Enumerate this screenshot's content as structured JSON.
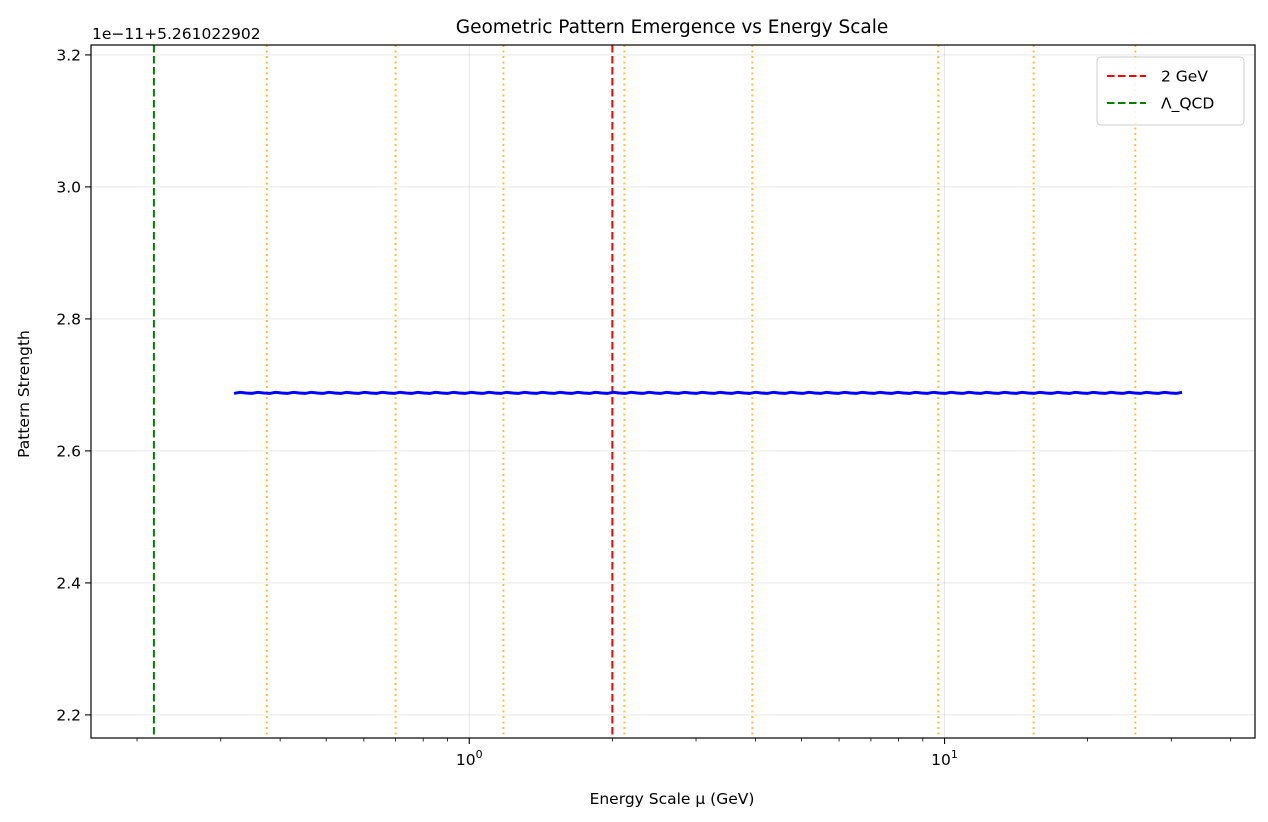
{
  "chart_data": {
    "type": "line",
    "title": "Geometric Pattern Emergence vs Energy Scale",
    "xlabel": "Energy Scale μ (GeV)",
    "ylabel": "Pattern Strength",
    "xscale": "log",
    "xlim": [
      0.16,
      45
    ],
    "ylim": [
      2.165,
      3.215
    ],
    "y_offset_text": "1e−11+5.261022902",
    "grid": true,
    "x_major_ticks": [
      {
        "value": 1,
        "base": "10",
        "exp": "0"
      },
      {
        "value": 10,
        "base": "10",
        "exp": "1"
      }
    ],
    "x_minor_ticks": [
      0.2,
      0.3,
      0.4,
      0.5,
      0.6,
      0.7,
      0.8,
      0.9,
      2,
      3,
      4,
      5,
      6,
      7,
      8,
      9,
      20,
      30,
      40
    ],
    "y_ticks": [
      "2.2",
      "2.4",
      "2.6",
      "2.8",
      "3.0",
      "3.2"
    ],
    "series": [
      {
        "color": "#0000ff",
        "x_range": [
          0.32,
          31.6
        ],
        "y_value": 2.688
      }
    ],
    "reference_lines": [
      {
        "label": "2 GeV",
        "x": 2.0,
        "color": "#ff0000",
        "style": "dashed"
      },
      {
        "label": "Λ_QCD",
        "x": 0.217,
        "color": "#008000",
        "style": "dashed"
      }
    ],
    "dotted_lines": {
      "color": "#ffa500",
      "x": [
        0.375,
        0.7,
        1.18,
        2.12,
        3.94,
        9.7,
        15.4,
        25.2
      ]
    },
    "legend": {
      "location": "top-right",
      "entries": [
        {
          "label": "2 GeV",
          "color": "#ff0000"
        },
        {
          "label": "Λ_QCD",
          "color": "#008000"
        }
      ]
    }
  }
}
